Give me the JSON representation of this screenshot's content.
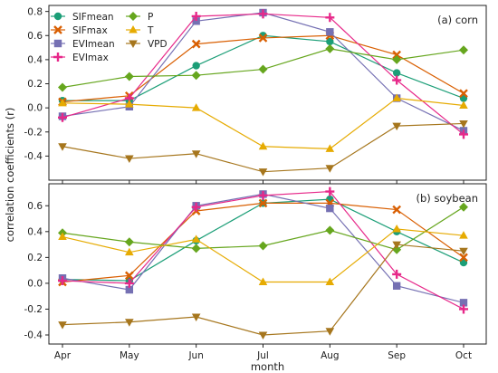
{
  "chart_data": [
    {
      "type": "line",
      "panel_label": "(a) corn",
      "categories": [
        "Apr",
        "May",
        "Jun",
        "Jul",
        "Aug",
        "Sep",
        "Oct"
      ],
      "ylim": [
        -0.6,
        0.85
      ],
      "yticks": [
        -0.4,
        -0.2,
        0.0,
        0.2,
        0.4,
        0.6,
        0.8
      ],
      "grid": false,
      "legend": "top-left",
      "series": [
        {
          "name": "SIFmean",
          "color": "#1b9e77",
          "marker": "circle",
          "values": [
            0.06,
            0.06,
            0.35,
            0.6,
            0.55,
            0.29,
            0.08
          ]
        },
        {
          "name": "SIFmax",
          "color": "#d95f02",
          "marker": "x",
          "values": [
            0.05,
            0.1,
            0.53,
            0.58,
            0.6,
            0.44,
            0.12
          ]
        },
        {
          "name": "EVImean",
          "color": "#7570b3",
          "marker": "square",
          "values": [
            -0.07,
            0.01,
            0.72,
            0.79,
            0.63,
            0.08,
            -0.19
          ]
        },
        {
          "name": "EVImax",
          "color": "#e7298a",
          "marker": "plus",
          "values": [
            -0.08,
            0.08,
            0.76,
            0.78,
            0.75,
            0.23,
            -0.22
          ]
        },
        {
          "name": "P",
          "color": "#66a61e",
          "marker": "diamond",
          "values": [
            0.17,
            0.26,
            0.27,
            0.32,
            0.49,
            0.4,
            0.48
          ]
        },
        {
          "name": "T",
          "color": "#e6ab02",
          "marker": "triangle-up",
          "values": [
            0.04,
            0.03,
            0.0,
            -0.32,
            -0.34,
            0.08,
            0.02
          ]
        },
        {
          "name": "VPD",
          "color": "#a6761d",
          "marker": "triangle-down",
          "values": [
            -0.32,
            -0.42,
            -0.38,
            -0.53,
            -0.5,
            -0.15,
            -0.13
          ]
        }
      ]
    },
    {
      "type": "line",
      "panel_label": "(b) soybean",
      "categories": [
        "Apr",
        "May",
        "Jun",
        "Jul",
        "Aug",
        "Sep",
        "Oct"
      ],
      "xlabel": "month",
      "ylim": [
        -0.47,
        0.77
      ],
      "yticks": [
        -0.4,
        -0.2,
        0.0,
        0.2,
        0.4,
        0.6
      ],
      "grid": false,
      "series": [
        {
          "name": "SIFmean",
          "color": "#1b9e77",
          "marker": "circle",
          "values": [
            0.03,
            0.02,
            0.33,
            0.62,
            0.65,
            0.4,
            0.16
          ]
        },
        {
          "name": "SIFmax",
          "color": "#d95f02",
          "marker": "x",
          "values": [
            0.01,
            0.06,
            0.56,
            0.62,
            0.62,
            0.57,
            0.2
          ]
        },
        {
          "name": "EVImean",
          "color": "#7570b3",
          "marker": "square",
          "values": [
            0.04,
            -0.05,
            0.6,
            0.69,
            0.58,
            -0.02,
            -0.15
          ]
        },
        {
          "name": "EVImax",
          "color": "#e7298a",
          "marker": "plus",
          "values": [
            0.02,
            0.0,
            0.59,
            0.68,
            0.71,
            0.07,
            -0.2
          ]
        },
        {
          "name": "P",
          "color": "#66a61e",
          "marker": "diamond",
          "values": [
            0.39,
            0.32,
            0.27,
            0.29,
            0.41,
            0.26,
            0.59
          ]
        },
        {
          "name": "T",
          "color": "#e6ab02",
          "marker": "triangle-up",
          "values": [
            0.36,
            0.24,
            0.34,
            0.01,
            0.01,
            0.42,
            0.37
          ]
        },
        {
          "name": "VPD",
          "color": "#a6761d",
          "marker": "triangle-down",
          "values": [
            -0.32,
            -0.3,
            -0.26,
            -0.4,
            -0.37,
            0.3,
            0.25
          ]
        }
      ]
    }
  ],
  "shared_ylabel": "correlation coefficients (r)"
}
